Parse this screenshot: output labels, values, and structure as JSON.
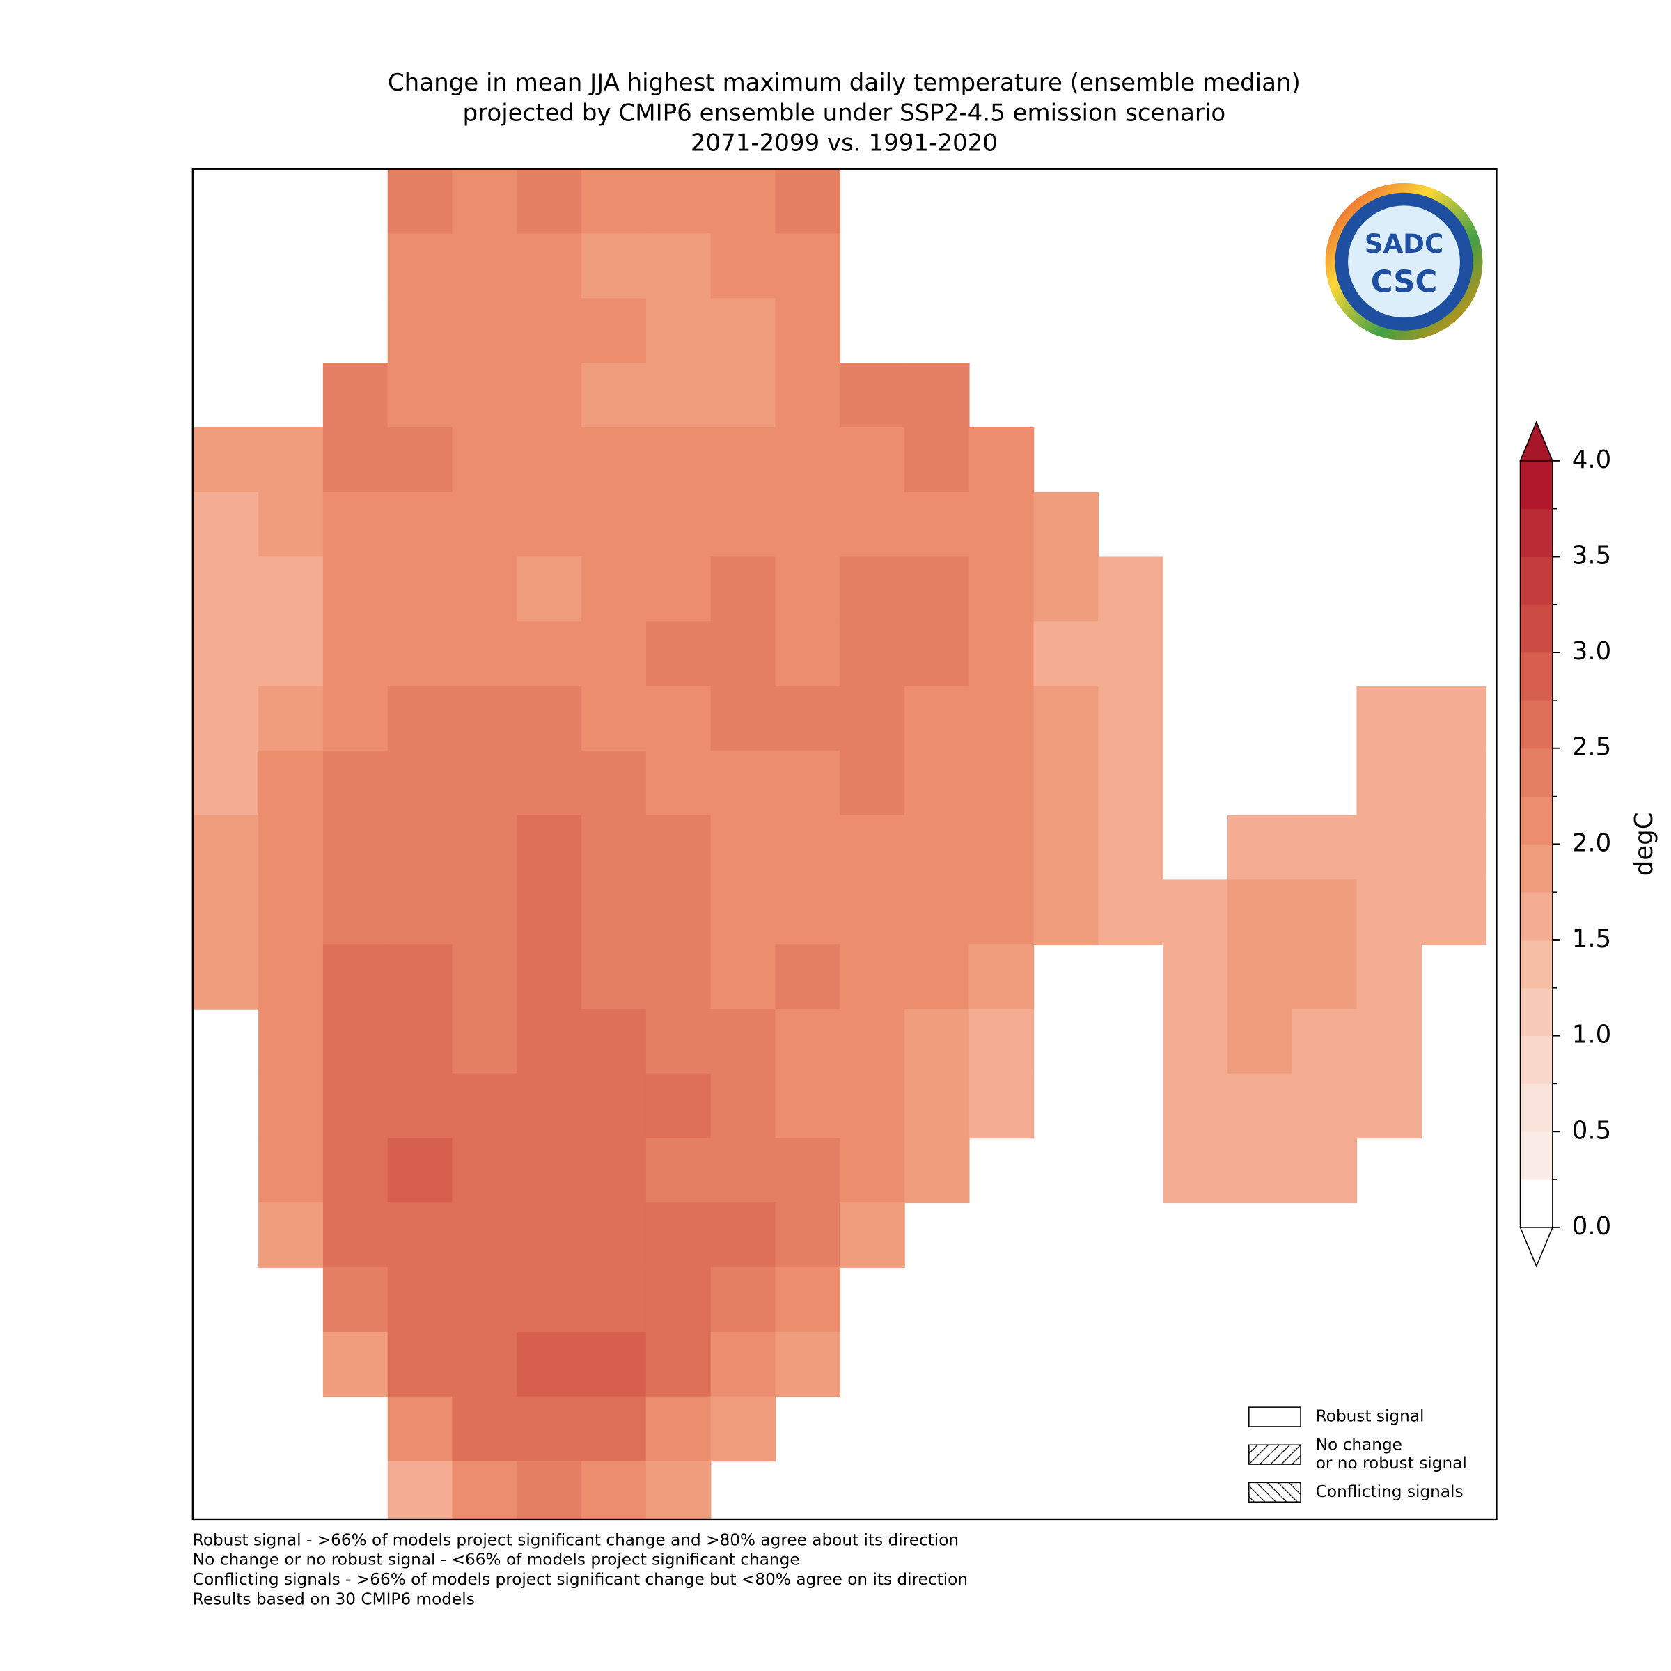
{
  "title": [
    "Change in mean JJA highest maximum daily temperature (ensemble median)",
    "projected by CMIP6 ensemble under SSP2-4.5 emission scenario",
    "2071-2099 vs. 1991-2020"
  ],
  "map": {
    "rows": [
      [
        null,
        null,
        null,
        2.3,
        2.2,
        2.3,
        2.1,
        2.0,
        2.2,
        2.3,
        null,
        null,
        null,
        null,
        null,
        null,
        null,
        null,
        null,
        null
      ],
      [
        null,
        null,
        null,
        2.2,
        2.1,
        2.2,
        1.9,
        1.9,
        2.0,
        2.2,
        null,
        null,
        null,
        null,
        null,
        null,
        null,
        null,
        null,
        null
      ],
      [
        null,
        null,
        null,
        2.1,
        2.0,
        2.1,
        2.0,
        1.8,
        1.9,
        2.2,
        null,
        null,
        null,
        null,
        null,
        null,
        null,
        null,
        null,
        null
      ],
      [
        null,
        null,
        2.3,
        2.2,
        2.1,
        2.0,
        1.8,
        1.9,
        1.9,
        2.1,
        2.3,
        2.4,
        null,
        null,
        null,
        null,
        null,
        null,
        null,
        null
      ],
      [
        1.8,
        1.9,
        2.3,
        2.4,
        2.2,
        2.1,
        2.0,
        2.0,
        2.1,
        2.2,
        2.2,
        2.3,
        2.1,
        null,
        null,
        null,
        null,
        null,
        null,
        null
      ],
      [
        1.6,
        1.8,
        2.1,
        2.2,
        2.1,
        2.0,
        2.1,
        2.1,
        2.2,
        2.2,
        2.2,
        2.2,
        2.1,
        1.9,
        null,
        null,
        null,
        null,
        null,
        null
      ],
      [
        1.5,
        1.7,
        2.1,
        2.2,
        2.1,
        1.9,
        2.1,
        2.2,
        2.3,
        2.2,
        2.3,
        2.4,
        2.1,
        1.8,
        1.7,
        null,
        null,
        null,
        null,
        null
      ],
      [
        1.5,
        1.7,
        2.1,
        2.2,
        2.2,
        2.2,
        2.2,
        2.4,
        2.3,
        2.2,
        2.4,
        2.3,
        2.0,
        1.7,
        1.6,
        null,
        null,
        null,
        null,
        null
      ],
      [
        1.5,
        1.9,
        2.2,
        2.3,
        2.3,
        2.4,
        2.2,
        2.2,
        2.3,
        2.3,
        2.3,
        2.1,
        2.0,
        1.8,
        1.7,
        null,
        null,
        null,
        1.6,
        1.6
      ],
      [
        1.7,
        2.1,
        2.3,
        2.4,
        2.4,
        2.4,
        2.3,
        2.2,
        2.2,
        2.2,
        2.3,
        2.1,
        2.0,
        1.9,
        1.7,
        null,
        null,
        null,
        1.6,
        1.5
      ],
      [
        1.8,
        2.2,
        2.4,
        2.4,
        2.3,
        2.5,
        2.4,
        2.3,
        2.0,
        2.1,
        2.1,
        2.0,
        2.0,
        1.9,
        1.7,
        null,
        1.6,
        1.6,
        1.6,
        1.5
      ],
      [
        1.8,
        2.1,
        2.4,
        2.4,
        2.4,
        2.5,
        2.4,
        2.3,
        2.2,
        2.2,
        2.1,
        2.2,
        2.0,
        1.8,
        1.7,
        1.6,
        1.8,
        1.8,
        1.6,
        1.5
      ],
      [
        1.8,
        2.1,
        2.5,
        2.6,
        2.4,
        2.5,
        2.4,
        2.3,
        2.2,
        2.3,
        2.1,
        2.0,
        1.8,
        null,
        null,
        1.6,
        1.8,
        1.8,
        1.6,
        null
      ],
      [
        null,
        2.1,
        2.6,
        2.6,
        2.4,
        2.6,
        2.5,
        2.4,
        2.3,
        2.2,
        2.0,
        1.9,
        1.7,
        null,
        null,
        1.6,
        1.8,
        1.7,
        1.5,
        null
      ],
      [
        null,
        2.1,
        2.6,
        2.6,
        2.5,
        2.6,
        2.7,
        2.5,
        2.3,
        2.2,
        2.0,
        1.9,
        1.7,
        null,
        null,
        1.7,
        1.7,
        1.7,
        1.5,
        null
      ],
      [
        null,
        2.0,
        2.6,
        2.8,
        2.5,
        2.5,
        2.5,
        2.4,
        2.3,
        2.3,
        2.0,
        1.8,
        null,
        null,
        null,
        1.6,
        1.6,
        1.6,
        null,
        null
      ],
      [
        null,
        1.9,
        2.5,
        2.7,
        2.5,
        2.5,
        2.6,
        2.7,
        2.5,
        2.4,
        1.9,
        null,
        null,
        null,
        null,
        null,
        null,
        null,
        null,
        null
      ],
      [
        null,
        null,
        2.4,
        2.6,
        2.6,
        2.6,
        2.6,
        2.5,
        2.4,
        2.1,
        null,
        null,
        null,
        null,
        null,
        null,
        null,
        null,
        null,
        null
      ],
      [
        null,
        null,
        1.8,
        2.5,
        2.6,
        2.8,
        2.8,
        2.6,
        2.2,
        1.8,
        null,
        null,
        null,
        null,
        null,
        null,
        null,
        null,
        null,
        null
      ],
      [
        null,
        null,
        null,
        2.2,
        2.5,
        2.6,
        2.5,
        2.2,
        1.8,
        null,
        null,
        null,
        null,
        null,
        null,
        null,
        null,
        null,
        null,
        null
      ],
      [
        null,
        null,
        null,
        1.6,
        2.2,
        2.3,
        2.1,
        1.9,
        null,
        null,
        null,
        null,
        null,
        null,
        null,
        null,
        null,
        null,
        null,
        null
      ]
    ]
  },
  "colorbar": {
    "label": "degC",
    "ticks": [
      {
        "value": 0,
        "label": "0.0"
      },
      {
        "value": 0.5,
        "label": "0.5"
      },
      {
        "value": 1,
        "label": "1.0"
      },
      {
        "value": 1.5,
        "label": "1.5"
      },
      {
        "value": 2,
        "label": "2.0"
      },
      {
        "value": 2.5,
        "label": "2.5"
      },
      {
        "value": 3,
        "label": "3.0"
      },
      {
        "value": 3.5,
        "label": "3.5"
      },
      {
        "value": 4,
        "label": "4.0"
      }
    ],
    "levels": [
      0,
      0.25,
      0.5,
      0.75,
      1,
      1.25,
      1.5,
      1.75,
      2,
      2.25,
      2.5,
      2.75,
      3,
      3.25,
      3.5,
      3.75,
      4
    ],
    "colors": [
      "#ffffff",
      "#f9ebe6",
      "#f9e2d9",
      "#f9d8cb",
      "#f8cbb8",
      "#f6bda5",
      "#f4ad92",
      "#f09d7e",
      "#ec8e6e",
      "#e57f63",
      "#de6f58",
      "#d6604d",
      "#cc4c44",
      "#c43c3c",
      "#b92c35",
      "#b2182b"
    ],
    "under_color": "#ffffff",
    "over_color": "#a8162a"
  },
  "legend": [
    {
      "label": [
        "Robust signal"
      ]
    },
    {
      "label": [
        "No change",
        "or no robust signal"
      ]
    },
    {
      "label": [
        "Conflicting signals"
      ]
    }
  ],
  "logo": {
    "top": "SADC",
    "bottom": "CSC"
  },
  "footnotes": [
    "Robust signal - >66% of models project significant change and >80% agree about its direction",
    "No change or no robust signal - <66% of models project significant change",
    "Conflicting signals - >66% of models project significant change but <80% agree on its direction",
    "Results based on 30 CMIP6 models"
  ]
}
